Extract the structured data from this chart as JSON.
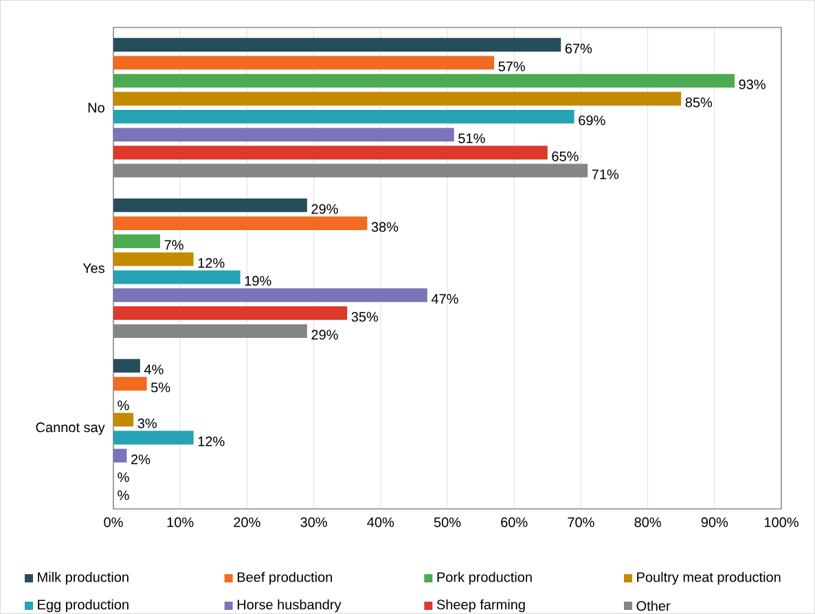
{
  "chart_data": {
    "type": "bar",
    "orientation": "horizontal",
    "categories": [
      "No",
      "Yes",
      "Cannot say"
    ],
    "series": [
      {
        "name": "Milk production",
        "color": "#264d5c",
        "values": [
          67,
          29,
          4
        ],
        "value_labels": [
          "67%",
          "29%",
          "4%"
        ]
      },
      {
        "name": "Beef production",
        "color": "#f26b21",
        "values": [
          57,
          38,
          5
        ],
        "value_labels": [
          "57%",
          "38%",
          "5%"
        ]
      },
      {
        "name": "Pork production",
        "color": "#4caa50",
        "values": [
          93,
          7,
          null
        ],
        "value_labels": [
          "93%",
          "7%",
          "%"
        ]
      },
      {
        "name": "Poultry meat production",
        "color": "#c48a00",
        "values": [
          85,
          12,
          3
        ],
        "value_labels": [
          "85%",
          "12%",
          "3%"
        ]
      },
      {
        "name": "Egg production",
        "color": "#25a3b5",
        "values": [
          69,
          19,
          12
        ],
        "value_labels": [
          "69%",
          "19%",
          "12%"
        ]
      },
      {
        "name": "Horse husbandry",
        "color": "#7a74b8",
        "values": [
          51,
          47,
          2
        ],
        "value_labels": [
          "51%",
          "47%",
          "2%"
        ]
      },
      {
        "name": "Sheep farming",
        "color": "#dc3a2a",
        "values": [
          65,
          35,
          null
        ],
        "value_labels": [
          "65%",
          "35%",
          "%"
        ]
      },
      {
        "name": "Other",
        "color": "#858585",
        "values": [
          71,
          29,
          null
        ],
        "value_labels": [
          "71%",
          "29%",
          "%"
        ]
      }
    ],
    "xlim": [
      0,
      100
    ],
    "xticks": [
      {
        "value": 0,
        "label": "0%"
      },
      {
        "value": 10,
        "label": "10%"
      },
      {
        "value": 20,
        "label": "20%"
      },
      {
        "value": 30,
        "label": "30%"
      },
      {
        "value": 40,
        "label": "40%"
      },
      {
        "value": 50,
        "label": "50%"
      },
      {
        "value": 60,
        "label": "60%"
      },
      {
        "value": 70,
        "label": "70%"
      },
      {
        "value": 80,
        "label": "80%"
      },
      {
        "value": 90,
        "label": "90%"
      },
      {
        "value": 100,
        "label": "100%"
      }
    ],
    "grid": "x",
    "legend": "bottom"
  }
}
